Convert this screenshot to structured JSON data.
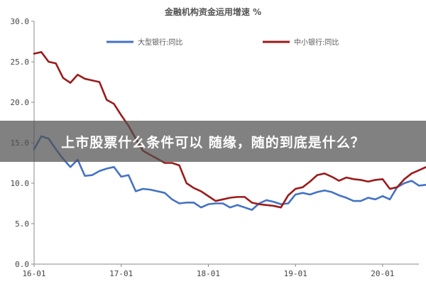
{
  "chart_data": {
    "type": "line",
    "title": "金融机构资金运用增速 %",
    "ylim": [
      0,
      30
    ],
    "yticks": [
      0,
      5,
      10,
      15,
      20,
      25,
      30
    ],
    "ytick_labels": [
      "0.0",
      "5.0",
      "10.0",
      "15.0",
      "20.0",
      "25.0",
      "30.0"
    ],
    "xlim": [
      0,
      53
    ],
    "xticks": [
      0,
      12,
      24,
      36,
      48
    ],
    "xtick_labels": [
      "16-01",
      "17-01",
      "18-01",
      "19-01",
      "20-01"
    ],
    "legend_position": "top",
    "series": [
      {
        "name": "大型银行:同比",
        "color": "#4472c4",
        "values": [
          14.2,
          15.8,
          15.5,
          14.2,
          13.0,
          12.0,
          12.9,
          10.9,
          11.0,
          11.5,
          11.8,
          12.0,
          10.8,
          11.0,
          9.0,
          9.3,
          9.2,
          9.0,
          8.8,
          8.0,
          7.5,
          7.6,
          7.6,
          7.0,
          7.4,
          7.5,
          7.5,
          7.0,
          7.3,
          7.0,
          6.7,
          7.5,
          7.9,
          7.7,
          7.4,
          7.5,
          8.6,
          8.8,
          8.6,
          8.9,
          9.1,
          8.9,
          8.5,
          8.2,
          7.8,
          7.8,
          8.2,
          8.0,
          8.4,
          8.0,
          9.5,
          10.0,
          10.3,
          9.7,
          9.8
        ]
      },
      {
        "name": "中小银行:同比",
        "color": "#9b1b1b",
        "values": [
          26.0,
          26.2,
          25.0,
          24.8,
          23.0,
          22.4,
          23.4,
          22.9,
          22.7,
          22.5,
          20.3,
          19.8,
          18.4,
          17.1,
          15.5,
          14.0,
          13.5,
          13.0,
          12.5,
          12.5,
          12.2,
          10.0,
          9.4,
          9.0,
          8.4,
          7.8,
          8.0,
          8.2,
          8.3,
          8.3,
          7.6,
          7.4,
          7.3,
          7.2,
          7.0,
          8.5,
          9.3,
          9.5,
          10.2,
          11.0,
          11.2,
          10.8,
          10.3,
          10.7,
          10.5,
          10.4,
          10.2,
          10.4,
          10.5,
          9.3,
          9.5,
          10.5,
          11.2,
          11.6,
          12.0
        ]
      }
    ]
  },
  "banner": {
    "text": "上市股票什么条件可以 随缘，随的到底是什么？"
  }
}
